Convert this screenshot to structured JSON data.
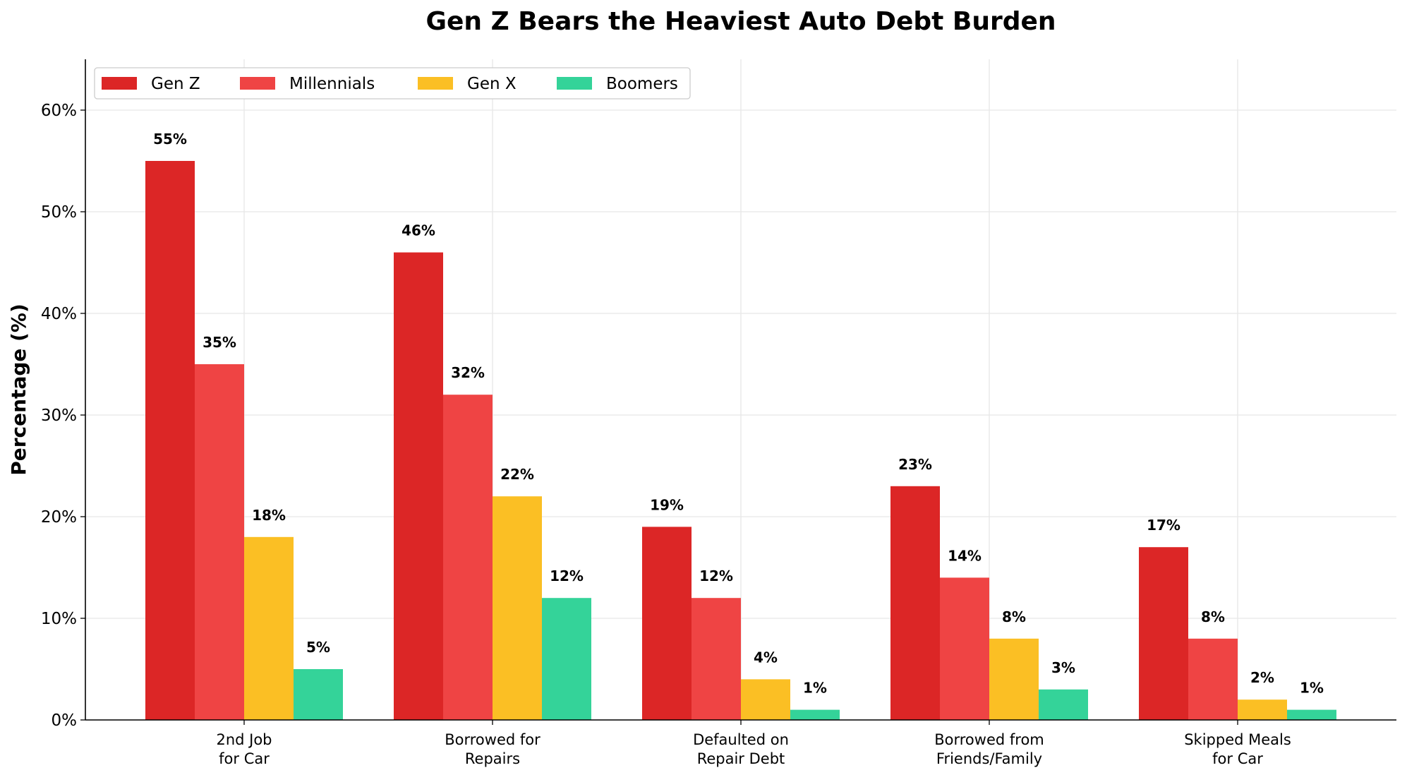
{
  "chart_data": {
    "type": "bar",
    "title": "Gen Z Bears the Heaviest Auto Debt Burden",
    "xlabel": "",
    "ylabel": "Percentage (%)",
    "ylim": [
      0,
      65
    ],
    "yticks": [
      0,
      10,
      20,
      30,
      40,
      50,
      60
    ],
    "ytick_labels": [
      "0%",
      "10%",
      "20%",
      "30%",
      "40%",
      "50%",
      "60%"
    ],
    "grid": true,
    "legend_position": "top-left",
    "categories": [
      [
        "2nd Job",
        "for Car"
      ],
      [
        "Borrowed for",
        "Repairs"
      ],
      [
        "Defaulted on",
        "Repair Debt"
      ],
      [
        "Borrowed from",
        "Friends/Family"
      ],
      [
        "Skipped Meals",
        "for Car"
      ]
    ],
    "series": [
      {
        "name": "Gen Z",
        "color": "#dc2626",
        "values": [
          55,
          46,
          19,
          23,
          17
        ]
      },
      {
        "name": "Millennials",
        "color": "#ef4444",
        "values": [
          35,
          32,
          12,
          14,
          8
        ]
      },
      {
        "name": "Gen X",
        "color": "#fbbf24",
        "values": [
          18,
          22,
          4,
          8,
          2
        ]
      },
      {
        "name": "Boomers",
        "color": "#34d399",
        "values": [
          5,
          12,
          1,
          3,
          1
        ]
      }
    ],
    "data_label_suffix": "%"
  }
}
